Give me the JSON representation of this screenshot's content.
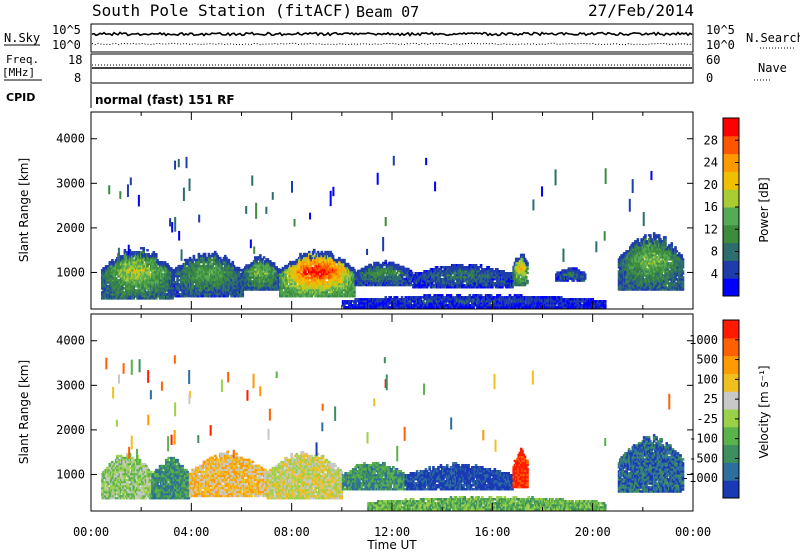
{
  "header": {
    "station": "South Pole Station (fitACF)",
    "beam": "Beam 07",
    "date": "27/Feb/2014"
  },
  "strip_panels": {
    "nsky_label": "N.Sky",
    "nsky_ticks": [
      "10^5",
      "10^0"
    ],
    "nsearch_label": "N.Search",
    "nsearch_ticks": [
      "10^5",
      "10^0"
    ],
    "freq_label_line1": "Freq.",
    "freq_label_line2": "[MHz]",
    "freq_ticks": [
      "18",
      "8"
    ],
    "nave_label": "Nave",
    "nave_ticks": [
      "60",
      "0"
    ],
    "cpid_label": "CPID",
    "cpid_value": "normal (fast) 151 RF"
  },
  "chart_data": [
    {
      "type": "heatmap",
      "name_of_panel": "power",
      "ylabel": "Slant Range [km]",
      "y_ticks": [
        "4000",
        "3000",
        "2000",
        "1000"
      ],
      "y_tick_values": [
        4000,
        3000,
        2000,
        1000
      ],
      "ylim": [
        180,
        4600
      ],
      "x_ticks": [
        "00:00",
        "04:00",
        "08:00",
        "12:00",
        "16:00",
        "20:00",
        "00:00"
      ],
      "x_tick_hours": [
        0,
        4,
        8,
        12,
        16,
        20,
        24
      ],
      "xlim": [
        0,
        24
      ],
      "colorbar": {
        "label": "Power [dB]",
        "ticks": [
          "28",
          "24",
          "20",
          "16",
          "12",
          "8",
          "4"
        ],
        "tick_values": [
          28,
          24,
          20,
          16,
          12,
          8,
          4
        ],
        "range": [
          0,
          32
        ],
        "colors": [
          "#0000ff",
          "#1e3caa",
          "#2d6d6d",
          "#3c8c3c",
          "#55aa55",
          "#aacc33",
          "#f0c000",
          "#ff9900",
          "#ff5500",
          "#ff0000"
        ]
      },
      "clusters": [
        {
          "t0": 0.4,
          "t1": 3.2,
          "r0": 400,
          "r1": 1600,
          "v": 16
        },
        {
          "t0": 3.2,
          "t1": 6.0,
          "r0": 450,
          "r1": 1500,
          "v": 12
        },
        {
          "t0": 6.0,
          "t1": 7.5,
          "r0": 600,
          "r1": 1400,
          "v": 14
        },
        {
          "t0": 7.5,
          "t1": 10.5,
          "r0": 450,
          "r1": 1550,
          "v": 27
        },
        {
          "t0": 10.5,
          "t1": 12.8,
          "r0": 700,
          "r1": 1250,
          "v": 10
        },
        {
          "t0": 12.8,
          "t1": 16.8,
          "r0": 650,
          "r1": 1200,
          "v": 8
        },
        {
          "t0": 16.8,
          "t1": 17.4,
          "r0": 700,
          "r1": 1500,
          "v": 20
        },
        {
          "t0": 18.5,
          "t1": 19.7,
          "r0": 800,
          "r1": 1100,
          "v": 8
        },
        {
          "t0": 21.0,
          "t1": 23.6,
          "r0": 600,
          "r1": 1900,
          "v": 14
        },
        {
          "t0": 10.0,
          "t1": 20.5,
          "r0": 200,
          "r1": 500,
          "v": 5
        }
      ]
    },
    {
      "type": "heatmap",
      "name_of_panel": "velocity",
      "ylabel": "Slant Range [km]",
      "y_ticks": [
        "4000",
        "3000",
        "2000",
        "1000"
      ],
      "y_tick_values": [
        4000,
        3000,
        2000,
        1000
      ],
      "ylim": [
        180,
        4600
      ],
      "x_ticks": [
        "00:00",
        "04:00",
        "08:00",
        "12:00",
        "16:00",
        "20:00",
        "00:00"
      ],
      "x_tick_hours": [
        0,
        4,
        8,
        12,
        16,
        20,
        24
      ],
      "xlim": [
        0,
        24
      ],
      "xlabel": "Time UT",
      "colorbar": {
        "label": "Velocity [m s⁻¹]",
        "ticks": [
          "1000",
          "500",
          "100",
          "25",
          "-25",
          "-100",
          "-500",
          "-1000"
        ],
        "colors": [
          "#1a3ab5",
          "#2e6e9e",
          "#3d8f60",
          "#5ab24a",
          "#9bd14a",
          "#c8c8c8",
          "#f0c020",
          "#ff9a00",
          "#ff6000",
          "#ff1a00"
        ]
      },
      "clusters": [
        {
          "t0": 0.4,
          "t1": 2.4,
          "r0": 450,
          "r1": 1500,
          "v": 4
        },
        {
          "t0": 2.4,
          "t1": 3.9,
          "r0": 450,
          "r1": 1400,
          "v": 2
        },
        {
          "t0": 3.9,
          "t1": 7.0,
          "r0": 500,
          "r1": 1500,
          "v": 6
        },
        {
          "t0": 7.0,
          "t1": 10.0,
          "r0": 450,
          "r1": 1550,
          "v": 5
        },
        {
          "t0": 10.0,
          "t1": 12.5,
          "r0": 650,
          "r1": 1300,
          "v": 2
        },
        {
          "t0": 12.5,
          "t1": 16.8,
          "r0": 650,
          "r1": 1250,
          "v": 0
        },
        {
          "t0": 16.8,
          "t1": 17.4,
          "r0": 700,
          "r1": 1600,
          "v": 9
        },
        {
          "t0": 21.0,
          "t1": 23.6,
          "r0": 600,
          "r1": 1900,
          "v": 1
        },
        {
          "t0": 11.0,
          "t1": 20.5,
          "r0": 200,
          "r1": 500,
          "v": 3
        }
      ]
    }
  ]
}
